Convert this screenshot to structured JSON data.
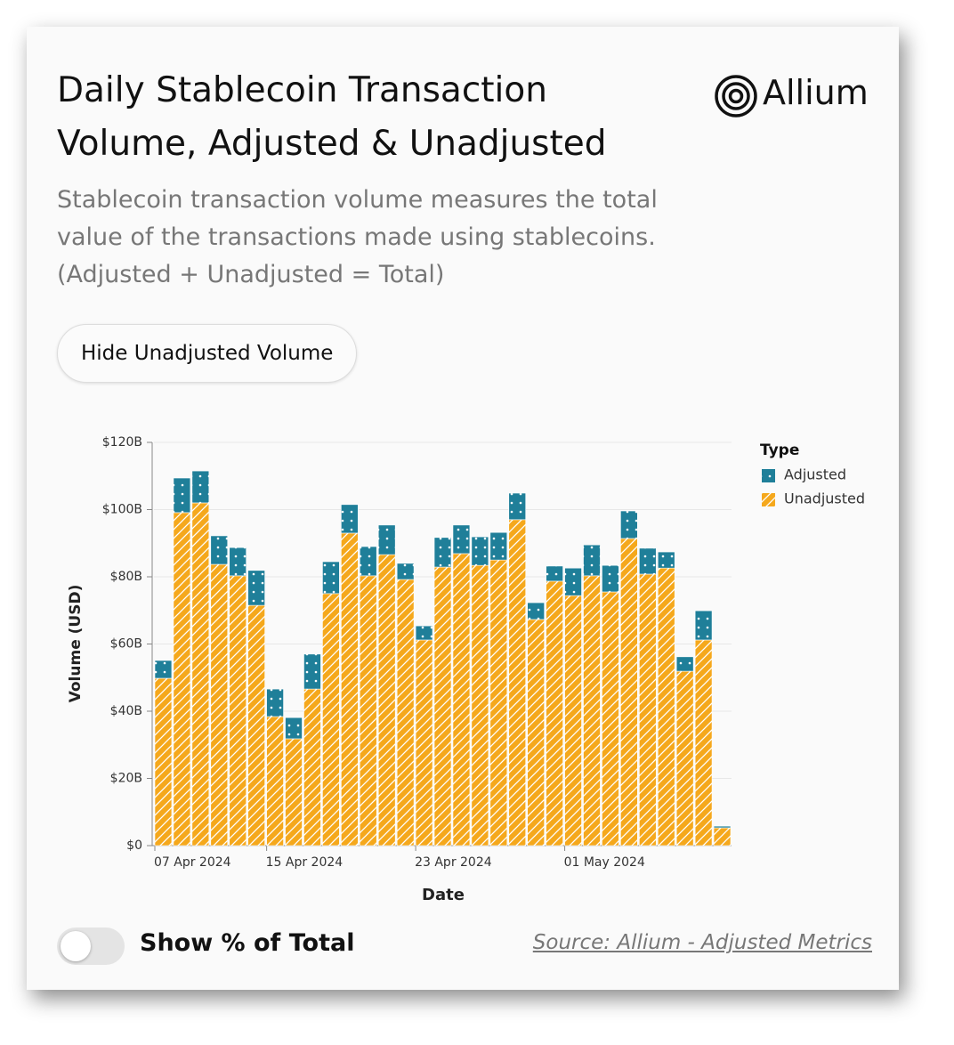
{
  "header": {
    "title": "Daily Stablecoin Transaction Volume, Adjusted & Unadjusted",
    "subtitle": "Stablecoin transaction volume measures the total value of the transactions made using stablecoins. (Adjusted + Unadjusted = Total)",
    "logo": "Allium"
  },
  "button": "Hide Unadjusted Volume",
  "toggle": "Show % of Total",
  "source": "Source: Allium - Adjusted Metrics",
  "chart_data": {
    "type": "stacked_bar",
    "x_label": "Date",
    "y_label": "Volume (USD)",
    "legend_title": "Type",
    "categories": [
      "07 Apr 2024",
      null,
      null,
      null,
      null,
      null,
      "15 Apr 2024",
      null,
      null,
      null,
      null,
      null,
      null,
      null,
      "23 Apr 2024",
      null,
      null,
      null,
      null,
      null,
      null,
      null,
      "01 May 2024",
      null,
      null,
      null,
      null,
      null,
      null,
      null,
      null
    ],
    "series": [
      {
        "name": "Unadjusted",
        "color": "#f5a81c",
        "values": [
          49.8,
          99.1,
          102,
          83.7,
          80.3,
          71.5,
          38.4,
          31.8,
          46.6,
          75,
          93,
          80.3,
          86.6,
          79.2,
          61.2,
          82.9,
          86.9,
          83.4,
          85,
          97,
          67.3,
          78.7,
          74.4,
          80.3,
          75.5,
          91.4,
          80.8,
          82.6,
          51.9,
          61.2,
          5.3
        ]
      },
      {
        "name": "Adjusted",
        "color": "#1f7f99",
        "values": [
          5.3,
          10.3,
          9.5,
          8.5,
          8.4,
          10.4,
          8.2,
          6.3,
          10.4,
          9.5,
          8.5,
          8.7,
          8.8,
          4.8,
          4.2,
          8.8,
          8.5,
          8.5,
          8.2,
          7.9,
          5,
          4.5,
          8.2,
          9.2,
          7.9,
          8.2,
          7.7,
          4.8,
          4.3,
          8.7,
          0.5
        ]
      }
    ],
    "ylim": [
      0,
      120
    ],
    "yticks": [
      {
        "value": 0,
        "label": "$0"
      },
      {
        "value": 20,
        "label": "$20B"
      },
      {
        "value": 40,
        "label": "$40B"
      },
      {
        "value": 60,
        "label": "$60B"
      },
      {
        "value": 80,
        "label": "$80B"
      },
      {
        "value": 100,
        "label": "$100B"
      },
      {
        "value": 120,
        "label": "$120B"
      }
    ],
    "grid": true
  }
}
